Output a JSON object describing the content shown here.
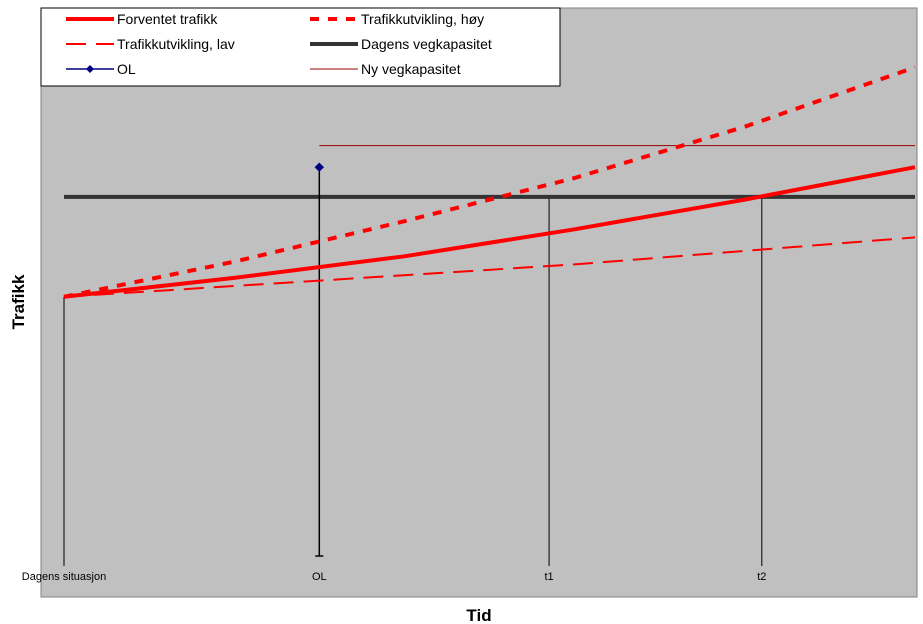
{
  "chart_data": {
    "type": "line",
    "title": "",
    "xlabel": "Tid",
    "ylabel": "Trafikk",
    "xlim": [
      0,
      10
    ],
    "ylim": [
      0,
      10
    ],
    "grid": false,
    "legend_placement": "top-left",
    "categories": [
      "Dagens situasjon",
      "OL",
      "t1",
      "t2"
    ],
    "category_x": [
      0,
      3,
      5.7,
      8.2
    ],
    "colors": {
      "plot_bg": "#c0c0c0",
      "red": "#ff0000",
      "dark_red": "#990000",
      "capacity": "#333333",
      "ol": "#000080"
    },
    "series": [
      {
        "name": "Forventet trafikk",
        "style": "solid-thick",
        "x": [
          0,
          2,
          4,
          6,
          8,
          10
        ],
        "y": [
          4.8,
          5.15,
          5.55,
          6.05,
          6.6,
          7.2
        ]
      },
      {
        "name": "Trafikkutvikling, høy",
        "style": "dotted-thick",
        "x": [
          0,
          2,
          4,
          6,
          8,
          10
        ],
        "y": [
          4.8,
          5.45,
          6.2,
          7.0,
          7.95,
          9.05
        ]
      },
      {
        "name": "Trafikkutvikling, lav",
        "style": "dashed",
        "x": [
          0,
          2,
          4,
          6,
          8,
          10
        ],
        "y": [
          4.8,
          5.0,
          5.2,
          5.4,
          5.65,
          5.9
        ]
      },
      {
        "name": "Dagens vegkapasitet",
        "style": "solid-black",
        "x": [
          0,
          10
        ],
        "y": [
          6.65,
          6.65
        ]
      },
      {
        "name": "OL",
        "style": "marker",
        "x": [
          3,
          3
        ],
        "y": [
          0,
          7.2
        ]
      },
      {
        "name": "Ny vegkapasitet",
        "style": "thin-darkred",
        "x": [
          3,
          10
        ],
        "y": [
          7.6,
          7.6
        ]
      }
    ],
    "drop_lines": [
      {
        "x": 0,
        "y": 4.8
      },
      {
        "x": 5.7,
        "y": 6.65
      },
      {
        "x": 8.2,
        "y": 6.65
      }
    ]
  }
}
